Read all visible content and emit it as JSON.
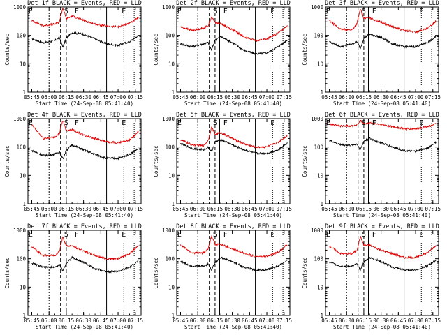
{
  "figure": {
    "colors": {
      "events": "#000000",
      "lld": "#dd0000",
      "background": "#ffffff"
    }
  },
  "chart_data": [
    {
      "type": "line",
      "title": "Det 1f BLACK = Events, RED = LLD",
      "xlabel": "Start Time (24-Sep-08 05:41:40)",
      "ylabel": "Counts/sec",
      "yscale": "log",
      "ylim": [
        1,
        1000
      ],
      "yticks": [
        "1",
        "10",
        "100",
        "1000"
      ],
      "xticks": [
        "05:45",
        "06:00",
        "06:15",
        "06:30",
        "06:45",
        "07:00",
        "07:15"
      ],
      "markers": [
        {
          "label": "E",
          "time": "05:44"
        },
        {
          "label": "S",
          "time": "06:15"
        },
        {
          "label": "F",
          "time": "06:24"
        },
        {
          "label": "E",
          "time": "07:05"
        }
      ],
      "series": [
        {
          "name": "BLACK = Events",
          "color": "#000000",
          "x": [
            "05:45",
            "05:55",
            "06:05",
            "06:09",
            "06:12",
            "06:15",
            "06:20",
            "06:30",
            "06:40",
            "06:50",
            "07:00",
            "07:10",
            "07:18"
          ],
          "values": [
            75,
            55,
            65,
            85,
            38,
            80,
            125,
            110,
            75,
            50,
            45,
            60,
            100
          ]
        },
        {
          "name": "RED = LLD",
          "color": "#dd0000",
          "x": [
            "05:45",
            "05:55",
            "06:05",
            "06:09",
            "06:12",
            "06:15",
            "06:20",
            "06:30",
            "06:40",
            "06:50",
            "07:00",
            "07:10",
            "07:18"
          ],
          "values": [
            330,
            220,
            250,
            290,
            950,
            380,
            480,
            340,
            250,
            210,
            200,
            270,
            420
          ]
        }
      ]
    },
    {
      "type": "line",
      "title": "Det 2f BLACK = Events, RED = LLD",
      "xlabel": "Start Time (24-Sep-08 05:41:40)",
      "ylabel": "Counts/sec",
      "yscale": "log",
      "ylim": [
        1,
        1000
      ],
      "yticks": [
        "1",
        "10",
        "100",
        "1000"
      ],
      "xticks": [
        "05:45",
        "06:00",
        "06:15",
        "06:30",
        "06:45",
        "07:00",
        "07:15"
      ],
      "markers": [
        {
          "label": "E",
          "time": "05:44"
        },
        {
          "label": "S",
          "time": "06:15"
        },
        {
          "label": "F",
          "time": "06:24"
        },
        {
          "label": "E",
          "time": "07:05"
        }
      ],
      "series": [
        {
          "name": "BLACK = Events",
          "color": "#000000",
          "x": [
            "05:45",
            "05:55",
            "06:05",
            "06:09",
            "06:12",
            "06:15",
            "06:20",
            "06:30",
            "06:40",
            "06:50",
            "07:00",
            "07:10",
            "07:18"
          ],
          "values": [
            50,
            40,
            50,
            55,
            30,
            70,
            90,
            55,
            30,
            22,
            24,
            40,
            70
          ]
        },
        {
          "name": "RED = LLD",
          "color": "#dd0000",
          "x": [
            "05:45",
            "05:55",
            "06:05",
            "06:09",
            "06:12",
            "06:15",
            "06:20",
            "06:30",
            "06:40",
            "06:50",
            "07:00",
            "07:10",
            "07:18"
          ],
          "values": [
            200,
            150,
            180,
            220,
            450,
            280,
            260,
            160,
            90,
            65,
            75,
            120,
            230
          ]
        }
      ]
    },
    {
      "type": "line",
      "title": "Det 3f BLACK = Events, RED = LLD",
      "xlabel": "Start Time (24-Sep-08 05:41:40)",
      "ylabel": "Counts/sec",
      "yscale": "log",
      "ylim": [
        1,
        1000
      ],
      "yticks": [
        "1",
        "10",
        "100",
        "1000"
      ],
      "xticks": [
        "05:45",
        "06:00",
        "06:15",
        "06:30",
        "06:45",
        "07:00",
        "07:15"
      ],
      "markers": [
        {
          "label": "E",
          "time": "05:44"
        },
        {
          "label": "S",
          "time": "06:15"
        },
        {
          "label": "F",
          "time": "06:24"
        },
        {
          "label": "E",
          "time": "07:05"
        }
      ],
      "series": [
        {
          "name": "BLACK = Events",
          "color": "#000000",
          "x": [
            "05:45",
            "05:55",
            "06:05",
            "06:09",
            "06:12",
            "06:15",
            "06:20",
            "06:30",
            "06:40",
            "06:50",
            "07:00",
            "07:10",
            "07:18"
          ],
          "values": [
            60,
            40,
            50,
            60,
            35,
            80,
            110,
            85,
            50,
            40,
            40,
            55,
            90
          ]
        },
        {
          "name": "RED = LLD",
          "color": "#dd0000",
          "x": [
            "05:45",
            "05:55",
            "06:05",
            "06:09",
            "06:12",
            "06:15",
            "06:20",
            "06:30",
            "06:40",
            "06:50",
            "07:00",
            "07:10",
            "07:18"
          ],
          "values": [
            330,
            160,
            160,
            260,
            850,
            400,
            420,
            290,
            200,
            150,
            130,
            170,
            330
          ]
        }
      ]
    },
    {
      "type": "line",
      "title": "Det 4f BLACK = Events, RED = LLD",
      "xlabel": "Start Time (24-Sep-08 05:41:40)",
      "ylabel": "Counts/sec",
      "yscale": "log",
      "ylim": [
        1,
        1000
      ],
      "yticks": [
        "1",
        "10",
        "100",
        "1000"
      ],
      "xticks": [
        "05:45",
        "06:00",
        "06:15",
        "06:30",
        "06:45",
        "07:00",
        "07:15"
      ],
      "markers": [
        {
          "label": "E",
          "time": "05:44"
        },
        {
          "label": "S",
          "time": "06:15"
        },
        {
          "label": "F",
          "time": "06:24"
        },
        {
          "label": "E",
          "time": "07:05"
        }
      ],
      "series": [
        {
          "name": "BLACK = Events",
          "color": "#000000",
          "x": [
            "05:45",
            "05:55",
            "06:05",
            "06:09",
            "06:12",
            "06:15",
            "06:20",
            "06:30",
            "06:40",
            "06:50",
            "07:00",
            "07:10",
            "07:18"
          ],
          "values": [
            75,
            50,
            55,
            70,
            38,
            75,
            120,
            80,
            55,
            40,
            40,
            55,
            90
          ]
        },
        {
          "name": "RED = LLD",
          "color": "#dd0000",
          "x": [
            "05:45",
            "05:55",
            "06:05",
            "06:09",
            "06:12",
            "06:15",
            "06:20",
            "06:30",
            "06:40",
            "06:50",
            "07:00",
            "07:10",
            "07:18"
          ],
          "values": [
            600,
            200,
            220,
            300,
            900,
            380,
            420,
            260,
            200,
            150,
            140,
            180,
            350
          ]
        }
      ]
    },
    {
      "type": "line",
      "title": "Det 5f BLACK = Events, RED = LLD",
      "xlabel": "Start Time (24-Sep-08 05:41:40)",
      "ylabel": "Counts/sec",
      "yscale": "log",
      "ylim": [
        1,
        1000
      ],
      "yticks": [
        "1",
        "10",
        "100",
        "1000"
      ],
      "xticks": [
        "05:45",
        "06:00",
        "06:15",
        "06:30",
        "06:45",
        "07:00",
        "07:15"
      ],
      "markers": [
        {
          "label": "E",
          "time": "05:44"
        },
        {
          "label": "S",
          "time": "06:15"
        },
        {
          "label": "F",
          "time": "06:24"
        },
        {
          "label": "E",
          "time": "07:05"
        }
      ],
      "series": [
        {
          "name": "BLACK = Events",
          "color": "#000000",
          "x": [
            "05:45",
            "05:55",
            "06:05",
            "06:09",
            "06:12",
            "06:15",
            "06:20",
            "06:30",
            "06:40",
            "06:50",
            "07:00",
            "07:10",
            "07:18"
          ],
          "values": [
            130,
            90,
            80,
            100,
            70,
            150,
            180,
            120,
            80,
            60,
            60,
            80,
            140
          ]
        },
        {
          "name": "RED = LLD",
          "color": "#dd0000",
          "x": [
            "05:45",
            "05:55",
            "06:05",
            "06:09",
            "06:12",
            "06:15",
            "06:20",
            "06:30",
            "06:40",
            "06:50",
            "07:00",
            "07:10",
            "07:18"
          ],
          "values": [
            180,
            120,
            110,
            170,
            500,
            280,
            320,
            200,
            130,
            100,
            100,
            150,
            260
          ]
        }
      ]
    },
    {
      "type": "line",
      "title": "Det 6f BLACK = Events, RED = LLD",
      "xlabel": "Start Time (24-Sep-08 05:41:40)",
      "ylabel": "Counts/sec",
      "yscale": "log",
      "ylim": [
        1,
        1000
      ],
      "yticks": [
        "1",
        "10",
        "100",
        "1000"
      ],
      "xticks": [
        "05:45",
        "06:00",
        "06:15",
        "06:30",
        "06:45",
        "07:00",
        "07:15"
      ],
      "markers": [
        {
          "label": "E",
          "time": "05:44"
        },
        {
          "label": "S",
          "time": "06:15"
        },
        {
          "label": "F",
          "time": "06:24"
        },
        {
          "label": "E",
          "time": "07:05"
        }
      ],
      "series": [
        {
          "name": "BLACK = Events",
          "color": "#000000",
          "x": [
            "05:45",
            "05:55",
            "06:05",
            "06:09",
            "06:12",
            "06:15",
            "06:20",
            "06:30",
            "06:40",
            "06:50",
            "07:00",
            "07:10",
            "07:18"
          ],
          "values": [
            170,
            120,
            115,
            130,
            80,
            160,
            200,
            140,
            100,
            75,
            70,
            90,
            150
          ]
        },
        {
          "name": "RED = LLD",
          "color": "#dd0000",
          "x": [
            "05:45",
            "05:55",
            "06:05",
            "06:09",
            "06:12",
            "06:15",
            "06:20",
            "06:30",
            "06:40",
            "06:50",
            "07:00",
            "07:10",
            "07:18"
          ],
          "values": [
            650,
            550,
            560,
            600,
            850,
            650,
            700,
            620,
            520,
            440,
            430,
            520,
            650
          ]
        }
      ]
    },
    {
      "type": "line",
      "title": "Det 7f BLACK = Events, RED = LLD",
      "xlabel": "Start Time (24-Sep-08 05:41:40)",
      "ylabel": "Counts/sec",
      "yscale": "log",
      "ylim": [
        1,
        1000
      ],
      "yticks": [
        "1",
        "10",
        "100",
        "1000"
      ],
      "xticks": [
        "05:45",
        "06:00",
        "06:15",
        "06:30",
        "06:45",
        "07:00",
        "07:15"
      ],
      "markers": [
        {
          "label": "E",
          "time": "05:44"
        },
        {
          "label": "S",
          "time": "06:15"
        },
        {
          "label": "F",
          "time": "06:24"
        },
        {
          "label": "E",
          "time": "07:05"
        }
      ],
      "series": [
        {
          "name": "BLACK = Events",
          "color": "#000000",
          "x": [
            "05:45",
            "05:55",
            "06:05",
            "06:09",
            "06:12",
            "06:15",
            "06:20",
            "06:30",
            "06:40",
            "06:50",
            "07:00",
            "07:10",
            "07:18"
          ],
          "values": [
            70,
            50,
            50,
            60,
            38,
            70,
            110,
            75,
            45,
            35,
            35,
            50,
            85
          ]
        },
        {
          "name": "RED = LLD",
          "color": "#dd0000",
          "x": [
            "05:45",
            "05:55",
            "06:05",
            "06:09",
            "06:12",
            "06:15",
            "06:20",
            "06:30",
            "06:40",
            "06:50",
            "07:00",
            "07:10",
            "07:18"
          ],
          "values": [
            260,
            130,
            130,
            180,
            600,
            280,
            280,
            190,
            130,
            100,
            100,
            150,
            300
          ]
        }
      ]
    },
    {
      "type": "line",
      "title": "Det 8f BLACK = Events, RED = LLD",
      "xlabel": "Start Time (24-Sep-08 05:41:40)",
      "ylabel": "Counts/sec",
      "yscale": "log",
      "ylim": [
        1,
        1000
      ],
      "yticks": [
        "1",
        "10",
        "100",
        "1000"
      ],
      "xticks": [
        "05:45",
        "06:00",
        "06:15",
        "06:30",
        "06:45",
        "07:00",
        "07:15"
      ],
      "markers": [
        {
          "label": "E",
          "time": "05:44"
        },
        {
          "label": "S",
          "time": "06:15"
        },
        {
          "label": "F",
          "time": "06:24"
        },
        {
          "label": "E",
          "time": "07:05"
        }
      ],
      "series": [
        {
          "name": "BLACK = Events",
          "color": "#000000",
          "x": [
            "05:45",
            "05:55",
            "06:05",
            "06:09",
            "06:12",
            "06:15",
            "06:20",
            "06:30",
            "06:40",
            "06:50",
            "07:00",
            "07:10",
            "07:18"
          ],
          "values": [
            80,
            55,
            55,
            65,
            40,
            75,
            110,
            80,
            50,
            40,
            40,
            55,
            90
          ]
        },
        {
          "name": "RED = LLD",
          "color": "#dd0000",
          "x": [
            "05:45",
            "05:55",
            "06:05",
            "06:09",
            "06:12",
            "06:15",
            "06:20",
            "06:30",
            "06:40",
            "06:50",
            "07:00",
            "07:10",
            "07:18"
          ],
          "values": [
            300,
            160,
            160,
            220,
            650,
            320,
            320,
            220,
            160,
            120,
            120,
            170,
            320
          ]
        }
      ]
    },
    {
      "type": "line",
      "title": "Det 9f BLACK = Events, RED = LLD",
      "xlabel": "Start Time (24-Sep-08 05:41:40)",
      "ylabel": "Counts/sec",
      "yscale": "log",
      "ylim": [
        1,
        1000
      ],
      "yticks": [
        "1",
        "10",
        "100",
        "1000"
      ],
      "xticks": [
        "05:45",
        "06:00",
        "06:15",
        "06:30",
        "06:45",
        "07:00",
        "07:15"
      ],
      "markers": [
        {
          "label": "E",
          "time": "05:44"
        },
        {
          "label": "S",
          "time": "06:15"
        },
        {
          "label": "F",
          "time": "06:24"
        },
        {
          "label": "E",
          "time": "07:05"
        }
      ],
      "series": [
        {
          "name": "BLACK = Events",
          "color": "#000000",
          "x": [
            "05:45",
            "05:55",
            "06:05",
            "06:09",
            "06:12",
            "06:15",
            "06:20",
            "06:30",
            "06:40",
            "06:50",
            "07:00",
            "07:10",
            "07:18"
          ],
          "values": [
            75,
            55,
            55,
            65,
            40,
            75,
            110,
            80,
            50,
            40,
            40,
            55,
            90
          ]
        },
        {
          "name": "RED = LLD",
          "color": "#dd0000",
          "x": [
            "05:45",
            "05:55",
            "06:05",
            "06:09",
            "06:12",
            "06:15",
            "06:20",
            "06:30",
            "06:40",
            "06:50",
            "07:00",
            "07:10",
            "07:18"
          ],
          "values": [
            280,
            150,
            150,
            200,
            600,
            300,
            300,
            200,
            150,
            110,
            110,
            160,
            300
          ]
        }
      ]
    }
  ]
}
